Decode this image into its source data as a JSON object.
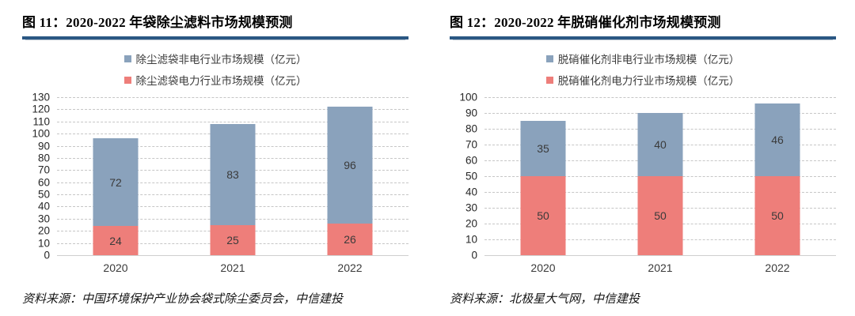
{
  "colors": {
    "bar_blue": "#8AA2BC",
    "bar_red": "#EE7E7A",
    "title_underline": "#2A5783",
    "gridline": "#c6c6c6",
    "axis_text": "#262626",
    "data_label_text": "#3a3a3a"
  },
  "figures": [
    {
      "title": "图 11：2020-2022 年袋除尘滤料市场规模预测",
      "source": "资料来源：中国环境保护产业协会袋式除尘委员会，中信建投"
    },
    {
      "title": "图 12：2020-2022 年脱硝催化剂市场规模预测",
      "source": "资料来源：北极星大气网，中信建投"
    }
  ],
  "chart_data": [
    {
      "type": "bar",
      "stacked": true,
      "title": "2020-2022 年袋除尘滤料市场规模预测",
      "categories": [
        "2020",
        "2021",
        "2022"
      ],
      "series": [
        {
          "name": "除尘滤袋电力行业市场规模（亿元）",
          "color": "#EE7E7A",
          "values": [
            24,
            25,
            26
          ]
        },
        {
          "name": "除尘滤袋非电行业市场规模（亿元）",
          "color": "#8AA2BC",
          "values": [
            72,
            83,
            96
          ]
        }
      ],
      "ylim": [
        0,
        130
      ],
      "ytick_step": 10,
      "grid": true,
      "gridline_style": "dashed",
      "legend_position": "top",
      "data_labels": true
    },
    {
      "type": "bar",
      "stacked": true,
      "title": "2020-2022 年脱硝催化剂市场规模预测",
      "categories": [
        "2020",
        "2021",
        "2022"
      ],
      "series": [
        {
          "name": "脱硝催化剂电力行业市场规模（亿元）",
          "color": "#EE7E7A",
          "values": [
            50,
            50,
            50
          ]
        },
        {
          "name": "脱硝催化剂非电行业市场规模（亿元）",
          "color": "#8AA2BC",
          "values": [
            35,
            40,
            46
          ]
        }
      ],
      "ylim": [
        0,
        100
      ],
      "ytick_step": 10,
      "grid": true,
      "gridline_style": "dashed",
      "legend_position": "top",
      "data_labels": true
    }
  ]
}
